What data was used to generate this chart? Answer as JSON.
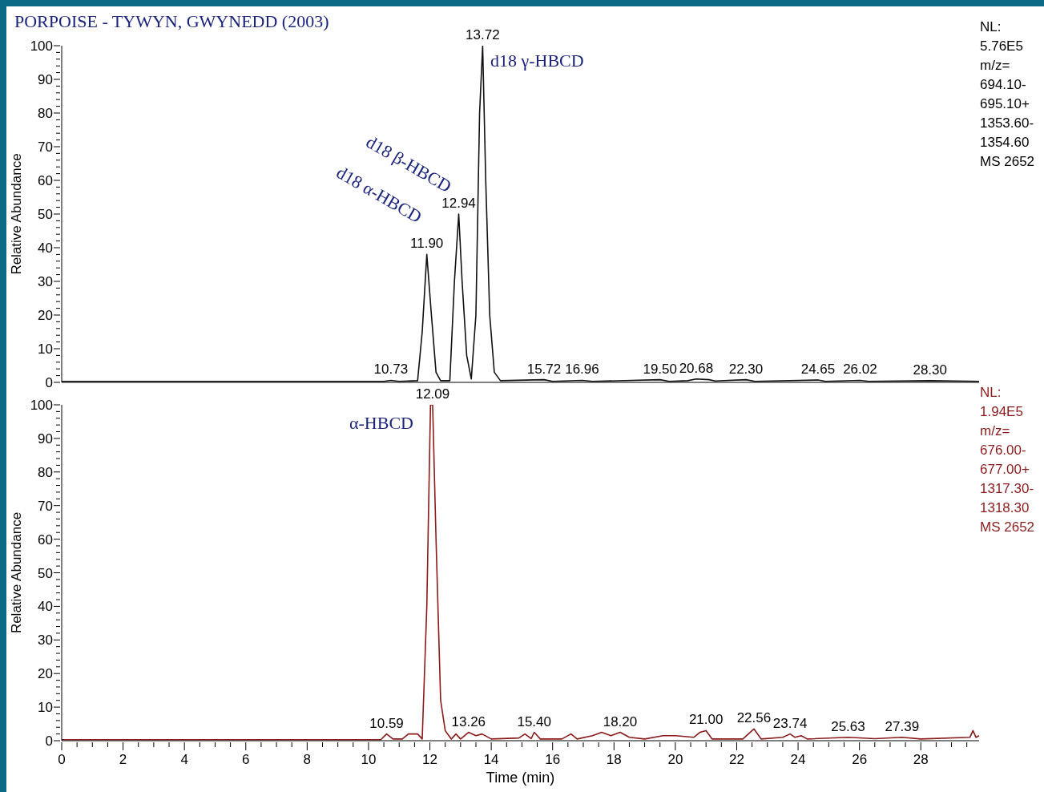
{
  "chart_data": [
    {
      "type": "line",
      "title": "PORPOISE - TYWYN, GWYNEDD (2003)",
      "ylabel": "Relative Abundance",
      "tick_labels": "y",
      "xlim": [
        0,
        29.9
      ],
      "ylim": [
        0,
        100
      ],
      "yticks": [
        0,
        {
          "value": 2,
          "label": null
        },
        {
          "value": 4,
          "label": null
        },
        {
          "value": 6,
          "label": null
        },
        {
          "value": 8,
          "label": null
        },
        10,
        {
          "value": 12,
          "label": null
        },
        {
          "value": 14,
          "label": null
        },
        {
          "value": 16,
          "label": null
        },
        {
          "value": 18,
          "label": null
        },
        20,
        {
          "value": 22,
          "label": null
        },
        {
          "value": 24,
          "label": null
        },
        {
          "value": 26,
          "label": null
        },
        {
          "value": 28,
          "label": null
        },
        30,
        {
          "value": 32,
          "label": null
        },
        {
          "value": 34,
          "label": null
        },
        {
          "value": 36,
          "label": null
        },
        {
          "value": 38,
          "label": null
        },
        40,
        {
          "value": 42,
          "label": null
        },
        {
          "value": 44,
          "label": null
        },
        {
          "value": 46,
          "label": null
        },
        {
          "value": 48,
          "label": null
        },
        50,
        {
          "value": 52,
          "label": null
        },
        {
          "value": 54,
          "label": null
        },
        {
          "value": 56,
          "label": null
        },
        {
          "value": 58,
          "label": null
        },
        60,
        {
          "value": 62,
          "label": null
        },
        {
          "value": 64,
          "label": null
        },
        {
          "value": 66,
          "label": null
        },
        {
          "value": 68,
          "label": null
        },
        70,
        {
          "value": 72,
          "label": null
        },
        {
          "value": 74,
          "label": null
        },
        {
          "value": 76,
          "label": null
        },
        {
          "value": 78,
          "label": null
        },
        80,
        {
          "value": 82,
          "label": null
        },
        {
          "value": 84,
          "label": null
        },
        {
          "value": 86,
          "label": null
        },
        {
          "value": 88,
          "label": null
        },
        90,
        {
          "value": 92,
          "label": null
        },
        {
          "value": 94,
          "label": null
        },
        {
          "value": 96,
          "label": null
        },
        {
          "value": 98,
          "label": null
        },
        100
      ],
      "series": [
        {
          "color": "#111111",
          "x": [
            0,
            10.5,
            10.73,
            11.0,
            11.6,
            11.75,
            11.9,
            12.05,
            12.2,
            12.35,
            12.65,
            12.8,
            12.94,
            13.05,
            13.2,
            13.35,
            13.5,
            13.62,
            13.72,
            13.82,
            13.95,
            14.1,
            14.3,
            15.72,
            16.0,
            16.96,
            17.3,
            19.5,
            19.8,
            20.4,
            20.68,
            21.1,
            21.3,
            22.3,
            22.6,
            24.65,
            24.9,
            26.02,
            26.3,
            28.3,
            29.9
          ],
          "values": [
            0.3,
            0.3,
            0.6,
            0.3,
            0.5,
            15,
            38,
            20,
            3,
            0.5,
            0.5,
            30,
            50,
            30,
            8,
            1,
            20,
            80,
            100,
            60,
            20,
            3,
            0.5,
            0.8,
            0.3,
            0.6,
            0.3,
            0.8,
            0.3,
            0.5,
            1,
            0.8,
            0.4,
            0.8,
            0.3,
            0.7,
            0.3,
            0.6,
            0.3,
            0.5,
            0.3
          ]
        }
      ],
      "annotations": [
        "d18 γ-HBCD",
        "d18 β-HBCD",
        "d18 α-HBCD",
        "NL:",
        "5.76E5",
        "m/z=",
        "694.10-",
        "695.10+",
        "1353.60-",
        "1354.60",
        "MS 2652",
        {
          "text": "10.73",
          "x": 10.73,
          "y": 0.6
        },
        {
          "text": "11.90",
          "x": 11.9,
          "y": 38
        },
        {
          "text": "12.94",
          "x": 12.94,
          "y": 50
        },
        {
          "text": "13.72",
          "x": 13.72,
          "y": 100
        },
        {
          "text": "15.72",
          "x": 15.72,
          "y": 0.8
        },
        {
          "text": "16.96",
          "x": 16.96,
          "y": 0.6
        },
        {
          "text": "19.50",
          "x": 19.5,
          "y": 0.8
        },
        {
          "text": "20.68",
          "x": 20.68,
          "y": 1
        },
        {
          "text": "22.30",
          "x": 22.3,
          "y": 0.8
        },
        {
          "text": "24.65",
          "x": 24.65,
          "y": 0.7
        },
        {
          "text": "26.02",
          "x": 26.02,
          "y": 0.6
        },
        {
          "text": "28.30",
          "x": 28.3,
          "y": 0.5
        }
      ]
    },
    {
      "type": "line",
      "xlabel": "Time (min)",
      "ylabel": "Relative Abundance",
      "xlim": [
        0,
        29.9
      ],
      "ylim": [
        0,
        100
      ],
      "xticks": [
        0,
        {
          "value": 0.5,
          "label": null
        },
        {
          "value": 1,
          "label": null
        },
        {
          "value": 1.5,
          "label": null
        },
        2,
        {
          "value": 2.5,
          "label": null
        },
        {
          "value": 3,
          "label": null
        },
        {
          "value": 3.5,
          "label": null
        },
        4,
        {
          "value": 4.5,
          "label": null
        },
        {
          "value": 5,
          "label": null
        },
        {
          "value": 5.5,
          "label": null
        },
        6,
        {
          "value": 6.5,
          "label": null
        },
        {
          "value": 7,
          "label": null
        },
        {
          "value": 7.5,
          "label": null
        },
        8,
        {
          "value": 8.5,
          "label": null
        },
        {
          "value": 9,
          "label": null
        },
        {
          "value": 9.5,
          "label": null
        },
        10,
        {
          "value": 10.5,
          "label": null
        },
        {
          "value": 11,
          "label": null
        },
        {
          "value": 11.5,
          "label": null
        },
        12,
        {
          "value": 12.5,
          "label": null
        },
        {
          "value": 13,
          "label": null
        },
        {
          "value": 13.5,
          "label": null
        },
        14,
        {
          "value": 14.5,
          "label": null
        },
        {
          "value": 15,
          "label": null
        },
        {
          "value": 15.5,
          "label": null
        },
        16,
        {
          "value": 16.5,
          "label": null
        },
        {
          "value": 17,
          "label": null
        },
        {
          "value": 17.5,
          "label": null
        },
        18,
        {
          "value": 18.5,
          "label": null
        },
        {
          "value": 19,
          "label": null
        },
        {
          "value": 19.5,
          "label": null
        },
        20,
        {
          "value": 20.5,
          "label": null
        },
        {
          "value": 21,
          "label": null
        },
        {
          "value": 21.5,
          "label": null
        },
        22,
        {
          "value": 22.5,
          "label": null
        },
        {
          "value": 23,
          "label": null
        },
        {
          "value": 23.5,
          "label": null
        },
        24,
        {
          "value": 24.5,
          "label": null
        },
        {
          "value": 25,
          "label": null
        },
        {
          "value": 25.5,
          "label": null
        },
        26,
        {
          "value": 26.5,
          "label": null
        },
        {
          "value": 27,
          "label": null
        },
        {
          "value": 27.5,
          "label": null
        },
        28,
        {
          "value": 28.5,
          "label": null
        },
        {
          "value": 29,
          "label": null
        },
        {
          "value": 29.5,
          "label": null
        }
      ],
      "yticks": [
        0,
        {
          "value": 2,
          "label": null
        },
        {
          "value": 4,
          "label": null
        },
        {
          "value": 6,
          "label": null
        },
        {
          "value": 8,
          "label": null
        },
        10,
        {
          "value": 12,
          "label": null
        },
        {
          "value": 14,
          "label": null
        },
        {
          "value": 16,
          "label": null
        },
        {
          "value": 18,
          "label": null
        },
        20,
        {
          "value": 22,
          "label": null
        },
        {
          "value": 24,
          "label": null
        },
        {
          "value": 26,
          "label": null
        },
        {
          "value": 28,
          "label": null
        },
        30,
        {
          "value": 32,
          "label": null
        },
        {
          "value": 34,
          "label": null
        },
        {
          "value": 36,
          "label": null
        },
        {
          "value": 38,
          "label": null
        },
        40,
        {
          "value": 42,
          "label": null
        },
        {
          "value": 44,
          "label": null
        },
        {
          "value": 46,
          "label": null
        },
        {
          "value": 48,
          "label": null
        },
        50,
        {
          "value": 52,
          "label": null
        },
        {
          "value": 54,
          "label": null
        },
        {
          "value": 56,
          "label": null
        },
        {
          "value": 58,
          "label": null
        },
        60,
        {
          "value": 62,
          "label": null
        },
        {
          "value": 64,
          "label": null
        },
        {
          "value": 66,
          "label": null
        },
        {
          "value": 68,
          "label": null
        },
        70,
        {
          "value": 72,
          "label": null
        },
        {
          "value": 74,
          "label": null
        },
        {
          "value": 76,
          "label": null
        },
        {
          "value": 78,
          "label": null
        },
        80,
        {
          "value": 82,
          "label": null
        },
        {
          "value": 84,
          "label": null
        },
        {
          "value": 86,
          "label": null
        },
        {
          "value": 88,
          "label": null
        },
        90,
        {
          "value": 92,
          "label": null
        },
        {
          "value": 94,
          "label": null
        },
        {
          "value": 96,
          "label": null
        },
        {
          "value": 98,
          "label": null
        },
        100
      ],
      "series": [
        {
          "color": "#8b1a1a",
          "x": [
            0,
            10.4,
            10.59,
            10.8,
            11.1,
            11.3,
            11.6,
            11.75,
            11.9,
            12.02,
            12.09,
            12.2,
            12.35,
            12.5,
            12.7,
            12.85,
            13.0,
            13.26,
            13.5,
            13.7,
            14.0,
            14.9,
            15.1,
            15.3,
            15.4,
            15.6,
            16.3,
            16.6,
            16.8,
            17.3,
            17.6,
            17.9,
            18.2,
            18.5,
            19.0,
            19.6,
            20.0,
            20.6,
            20.8,
            21.0,
            21.2,
            22.2,
            22.56,
            22.8,
            23.5,
            23.74,
            23.9,
            24.1,
            24.3,
            25.63,
            26.5,
            27.39,
            28.0,
            29.6,
            29.7,
            29.8,
            29.9
          ],
          "values": [
            0.3,
            0.3,
            2,
            0.5,
            0.5,
            2,
            2,
            0.5,
            40,
            100,
            100,
            60,
            12,
            3,
            0.5,
            2,
            0.5,
            2.5,
            1.5,
            2,
            0.5,
            0.8,
            2,
            0.6,
            2.5,
            0.5,
            0.5,
            2,
            0.5,
            1.5,
            2.5,
            1.5,
            2.5,
            1,
            0.5,
            1.5,
            1.5,
            1,
            2.5,
            3,
            0.5,
            0.5,
            3.5,
            0.5,
            1,
            2,
            1,
            1.5,
            0.5,
            1,
            0.6,
            1,
            0.5,
            1,
            3,
            1,
            1.5
          ]
        }
      ],
      "annotations": [
        "α-HBCD",
        "NL:",
        "1.94E5",
        "m/z=",
        "676.00-",
        "677.00+",
        "1317.30-",
        "1318.30",
        "MS 2652",
        {
          "text": "10.59",
          "x": 10.59,
          "y": 2
        },
        {
          "text": "12.09",
          "x": 12.09,
          "y": 100
        },
        {
          "text": "13.26",
          "x": 13.26,
          "y": 2.5
        },
        {
          "text": "15.40",
          "x": 15.4,
          "y": 2.5
        },
        {
          "text": "18.20",
          "x": 18.2,
          "y": 2.5
        },
        {
          "text": "21.00",
          "x": 21.0,
          "y": 3
        },
        {
          "text": "22.56",
          "x": 22.56,
          "y": 3.5
        },
        {
          "text": "23.74",
          "x": 23.74,
          "y": 2
        },
        {
          "text": "25.63",
          "x": 25.63,
          "y": 1
        },
        {
          "text": "27.39",
          "x": 27.39,
          "y": 1
        }
      ]
    }
  ]
}
